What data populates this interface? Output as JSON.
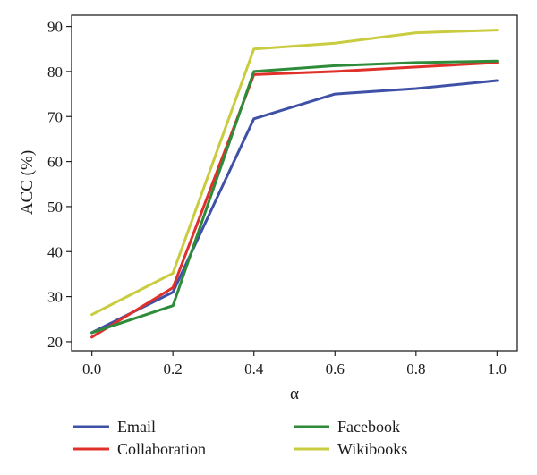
{
  "chart_data": {
    "type": "line",
    "xlabel": "α",
    "ylabel": "ACC (%)",
    "x": [
      0.0,
      0.2,
      0.4,
      0.6,
      0.8,
      1.0
    ],
    "x_tick_labels": [
      "0.0",
      "0.2",
      "0.4",
      "0.6",
      "0.8",
      "1.0"
    ],
    "xlim": [
      -0.05,
      1.05
    ],
    "y_ticks": [
      20,
      30,
      40,
      50,
      60,
      70,
      80,
      90
    ],
    "y_tick_labels": [
      "20",
      "30",
      "40",
      "50",
      "60",
      "70",
      "80",
      "90"
    ],
    "ylim": [
      18,
      92.5
    ],
    "grid": false,
    "legend_position": "bottom",
    "series": [
      {
        "name": "Email",
        "color": "#3f51a7",
        "values": [
          22,
          31,
          69.5,
          75,
          76.2,
          78
        ]
      },
      {
        "name": "Collaboration",
        "color": "#e0302a",
        "values": [
          21,
          32,
          79.3,
          80,
          81,
          82
        ]
      },
      {
        "name": "Facebook",
        "color": "#2e8b3a",
        "values": [
          22,
          28,
          80,
          81.3,
          82,
          82.3
        ]
      },
      {
        "name": "Wikibooks",
        "color": "#c9cc3f",
        "values": [
          26,
          35.2,
          85,
          86.3,
          88.6,
          89.2
        ]
      }
    ]
  }
}
